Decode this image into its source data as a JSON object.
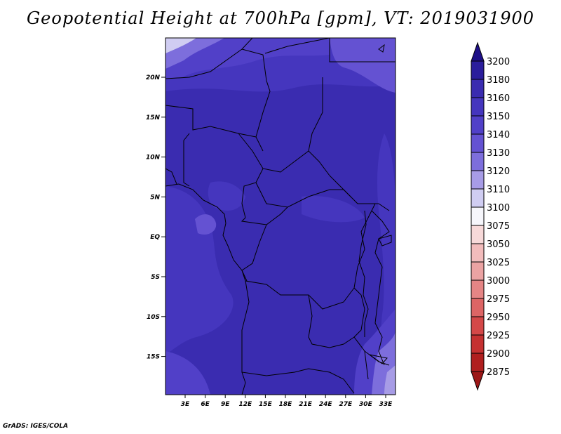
{
  "title": "Geopotential Height at 700hPa [gpm], VT: 2019031900",
  "credit": "GrADS: IGES/COLA",
  "lon_ticks": [
    "3E",
    "6E",
    "9E",
    "12E",
    "15E",
    "18E",
    "21E",
    "24E",
    "27E",
    "30E",
    "33E"
  ],
  "lat_ticks": [
    "20N",
    "15N",
    "10N",
    "5N",
    "EQ",
    "5S",
    "10S",
    "15S"
  ],
  "colorbar": {
    "levels": [
      "3200",
      "3180",
      "3160",
      "3150",
      "3140",
      "3130",
      "3120",
      "3110",
      "3100",
      "3075",
      "3050",
      "3025",
      "3000",
      "2975",
      "2950",
      "2925",
      "2900",
      "2875"
    ],
    "colors": [
      "#1e0f87",
      "#2b1d9c",
      "#3a2cb0",
      "#4536be",
      "#5140c8",
      "#6452d2",
      "#7d6edc",
      "#a79ce6",
      "#d0cdf2",
      "#f6f6fb",
      "#f7d9d9",
      "#f2bcbc",
      "#eba3a3",
      "#e58585",
      "#dd6565",
      "#d44848",
      "#c53131",
      "#b01f1f",
      "#9c1717"
    ]
  },
  "map": {
    "region": "Central Africa",
    "lon_range": [
      0,
      35
    ],
    "lat_range": [
      -20,
      24
    ],
    "dominant_fill": "#3a2cb0"
  }
}
